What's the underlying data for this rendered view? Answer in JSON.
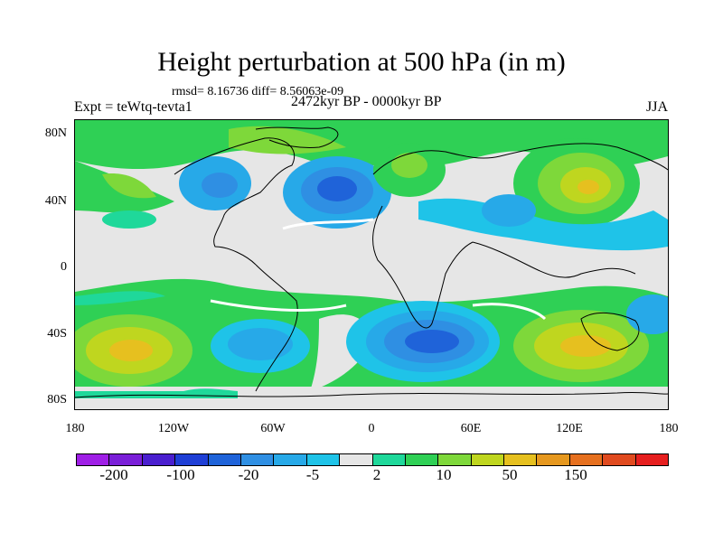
{
  "title": "Height perturbation at 500 hPa (in m)",
  "stats": "rmsd= 8.16736 diff= 8.56063e-09",
  "experiment": "Expt = teWtq-tevta1",
  "period": "2472kyr BP - 0000kyr BP",
  "season": "JJA",
  "lat_labels": [
    "80N",
    "40N",
    "0",
    "40S",
    "80S"
  ],
  "lon_labels": [
    "180",
    "120W",
    "60W",
    "0",
    "60E",
    "120E",
    "180"
  ],
  "colorbar": {
    "colors": [
      "#9f1fe6",
      "#7a1fd8",
      "#4a1fcf",
      "#1f3fd6",
      "#1f63d9",
      "#2f8fe3",
      "#27a9e8",
      "#1fc3e8",
      "#e6e6e6",
      "#1fd89a",
      "#2fd055",
      "#7ed83a",
      "#bfd61f",
      "#e6c01f",
      "#e6981f",
      "#e6701f",
      "#e04a1f",
      "#e61f1f"
    ],
    "labels": [
      "-200",
      "-100",
      "-20",
      "-5",
      "2",
      "10",
      "50",
      "150"
    ]
  }
}
